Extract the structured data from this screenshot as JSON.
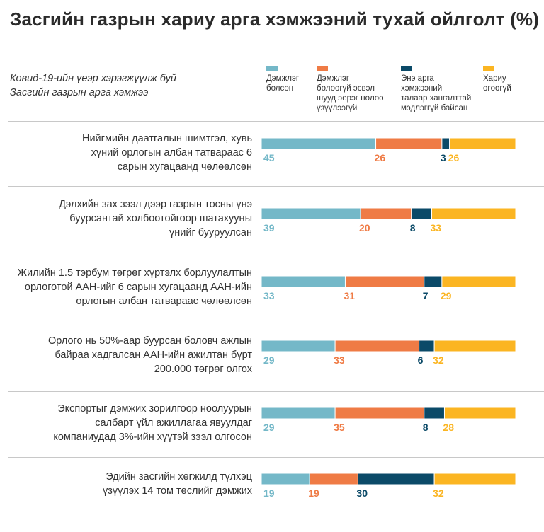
{
  "title": "Засгийн газрын хариу арга хэмжээний тухай ойлголт  (%)",
  "subtitle_lines": [
    "Ковид-19-ийн үеэр хэрэгжүүлж буй",
    "Засгийн газрын арга хэмжээ"
  ],
  "colors": {
    "supported": "#74b8c8",
    "not_supported": "#ef7b45",
    "no_info": "#0b4a68",
    "no_answer": "#fbb522"
  },
  "legend": [
    {
      "label": "Дэмжлэг болсон",
      "lines": [
        "Дэмжлэг",
        "болсон"
      ],
      "color": "#74b8c8"
    },
    {
      "label": "Дэмжлэг болоогүй эсвэл шууд эерэг нөлөө үзүүлээгүй",
      "lines": [
        "Дэмжлэг",
        "болоогүй эсвэл",
        "шууд эерэг нөлөө",
        "үзүүлээгүй"
      ],
      "color": "#ef7b45"
    },
    {
      "label": "Энэ арга хэмжээний талаар хангалттай мэдлэггүй байсан",
      "lines": [
        "Энэ арга",
        "хэмжээний",
        "талаар хангалттай",
        "мэдлэггүй байсан"
      ],
      "color": "#0b4a68"
    },
    {
      "label": "Хариу өгөөгүй",
      "lines": [
        "Хариу",
        "өгөөгүй"
      ],
      "color": "#fbb522"
    }
  ],
  "rows": [
    {
      "lines": [
        "Нийгмийн даатгалын шимтгэл, хувь",
        "хүний орлогын албан татвараас 6",
        "сарын хугацаанд чөлөөлсөн"
      ]
    },
    {
      "lines": [
        "Дэлхийн зах зээл дээр газрын тосны үнэ",
        "буурсантай холбоотойгоор шатахууны",
        "үнийг бууруулсан"
      ]
    },
    {
      "lines": [
        "Жилийн 1.5 тэрбум төгрөг хүртэлх борлуулалтын",
        "орлоготой ААН-ийг 6 сарын хугацаанд ААН-ийн",
        "орлогын албан татвараас чөлөөлсөн"
      ]
    },
    {
      "lines": [
        "Орлого нь 50%-аар буурсан боловч ажлын",
        "байраа хадгалсан ААН-ийн ажилтан бүрт",
        "200.000 төгрөг олгох"
      ]
    },
    {
      "lines": [
        "Экспортыг дэмжих зорилгоор ноолуурын",
        "салбарт үйл ажиллагаа явуулдаг",
        "компаниудад 3%-ийн хүүтэй зээл олгосон"
      ]
    },
    {
      "lines": [
        "Эдийн засгийн хөгжилд түлхэц",
        "үзүүлэх 14 том төслийг дэмжих"
      ]
    }
  ],
  "chart_data": {
    "type": "bar",
    "orientation": "horizontal",
    "stacked": true,
    "title": "Засгийн газрын хариу арга хэмжээний тухай ойлголт  (%)",
    "categories": [
      "Нийгмийн даатгалын шимтгэл, хувь хүний орлогын албан татвараас 6 сарын хугацаанд чөлөөлсөн",
      "Дэлхийн зах зээл дээр газрын тосны үнэ буурсантай холбоотойгоор шатахууны үнийг бууруулсан",
      "Жилийн 1.5 тэрбум төгрөг хүртэлх борлуулалтын орлоготой ААН-ийг 6 сарын хугацаанд ААН-ийн орлогын албан татвараас чөлөөлсөн",
      "Орлого нь 50%-аар буурсан боловч ажлын байраа хадгалсан ААН-ийн ажилтан бүрт 200.000 төгрөг олгох",
      "Экспортыг дэмжих зорилгоор ноолуурын салбарт үйл ажиллагаа явуулдаг компаниудад 3%-ийн хүүтэй зээл олгосон",
      "Эдийн засгийн хөгжилд түлхэц үзүүлэх 14 том төслийг дэмжих"
    ],
    "series": [
      {
        "name": "Дэмжлэг болсон",
        "values": [
          45,
          39,
          33,
          29,
          29,
          19
        ],
        "color": "#74b8c8"
      },
      {
        "name": "Дэмжлэг болоогүй эсвэл шууд эерэг нөлөө үзүүлээгүй",
        "values": [
          26,
          20,
          31,
          33,
          35,
          19
        ],
        "color": "#ef7b45"
      },
      {
        "name": "Энэ арга хэмжээний талаар хангалттай мэдлэггүй байсан",
        "values": [
          3,
          8,
          7,
          6,
          8,
          30
        ],
        "color": "#0b4a68"
      },
      {
        "name": "Хариу өгөөгүй",
        "values": [
          26,
          33,
          29,
          32,
          28,
          32
        ],
        "color": "#fbb522"
      }
    ],
    "legend_position": "top",
    "data_labels": true
  }
}
